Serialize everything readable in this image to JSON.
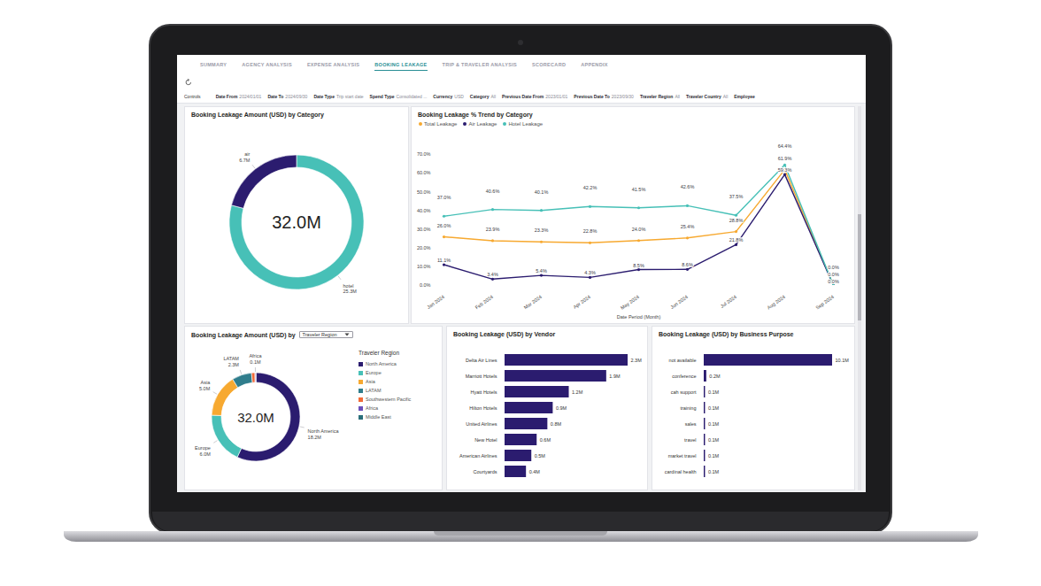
{
  "header": {
    "tabs": [
      "SUMMARY",
      "AGENCY ANALYSIS",
      "EXPENSE ANALYSIS",
      "BOOKING LEAKAGE",
      "TRIP & TRAVELER ANALYSIS",
      "SCORECARD",
      "APPENDIX"
    ],
    "active_tab": "BOOKING LEAKAGE",
    "controls_title": "Controls",
    "controls": [
      {
        "label": "Date From",
        "value": "2024/01/01"
      },
      {
        "label": "Date To",
        "value": "2024/09/30"
      },
      {
        "label": "Date Type",
        "value": "Trip start date"
      },
      {
        "label": "Spend Type",
        "value": "Consolidated ..."
      },
      {
        "label": "Currency",
        "value": "USD"
      },
      {
        "label": "Category",
        "value": "All"
      },
      {
        "label": "Previous Date From",
        "value": "2023/01/01"
      },
      {
        "label": "Previous Date To",
        "value": "2023/09/30"
      },
      {
        "label": "Traveler Region",
        "value": "All"
      },
      {
        "label": "Traveler Country",
        "value": "All"
      },
      {
        "label": "Employee",
        "value": null
      }
    ]
  },
  "chart_data": [
    {
      "type": "donut",
      "title": "Booking Leakage Amount (USD) by Category",
      "categories": [
        "hotel",
        "air"
      ],
      "values": [
        25.3,
        6.7
      ],
      "value_labels": [
        "25.3M",
        "6.7M"
      ],
      "colors": [
        "#47c0b7",
        "#2b1c6f"
      ],
      "center_label": "32.0M",
      "data_labels": true
    },
    {
      "type": "line",
      "title": "Booking Leakage % Trend by Category",
      "categories": [
        "Jan 2024",
        "Feb 2024",
        "Mar 2024",
        "Apr 2024",
        "May 2024",
        "Jun 2024",
        "Jul 2024",
        "Aug 2024",
        "Sep 2024"
      ],
      "xlabel": "Date Period (Month)",
      "ylim": [
        0,
        70
      ],
      "yticks": [
        {
          "value": 0,
          "label": "0.0%"
        },
        {
          "value": 10,
          "label": "10.0%"
        },
        {
          "value": 20,
          "label": "20.0%"
        },
        {
          "value": 30,
          "label": "30.0%"
        },
        {
          "value": 40,
          "label": "40.0%"
        },
        {
          "value": 50,
          "label": "50.0%"
        },
        {
          "value": 60,
          "label": "60.0%"
        },
        {
          "value": 70,
          "label": "70.0%"
        }
      ],
      "grid": false,
      "legend": "top-left",
      "data_labels": true,
      "marker": "circle",
      "series": [
        {
          "name": "Total Leakage",
          "color": "#f7a930",
          "values": [
            26.0,
            23.9,
            23.3,
            22.8,
            24.0,
            25.4,
            28.8,
            61.9,
            0.0
          ],
          "value_labels": [
            "26.0%",
            "23.9%",
            "23.3%",
            "22.8%",
            "24.0%",
            "25.4%",
            "28.8%",
            "61.9%",
            "0.0%"
          ]
        },
        {
          "name": "Air Leakage",
          "color": "#2b1c6f",
          "values": [
            11.1,
            3.4,
            5.4,
            4.3,
            8.5,
            8.6,
            21.8,
            59.3,
            0.0
          ],
          "value_labels": [
            "11.1%",
            "3.4%",
            "5.4%",
            "4.3%",
            "8.5%",
            "8.6%",
            "21.8%",
            "59.3%",
            "0.0%"
          ]
        },
        {
          "name": "Hotel Leakage",
          "color": "#47c0b7",
          "values": [
            37.0,
            40.6,
            40.1,
            42.2,
            41.5,
            42.6,
            37.5,
            64.4,
            0.0
          ],
          "value_labels": [
            "37.0%",
            "40.6%",
            "40.1%",
            "42.2%",
            "41.5%",
            "42.6%",
            "37.5%",
            "64.4%",
            "0.0%"
          ]
        }
      ]
    },
    {
      "type": "donut",
      "title": "Booking Leakage Amount (USD) by",
      "selector": "Traveler Region",
      "legend_title": "Traveler Region",
      "legend": "right",
      "categories": [
        "North America",
        "Europe",
        "Asia",
        "LATAM",
        "Southwestern Pacific",
        "Africa",
        "Middle East"
      ],
      "values": [
        18.2,
        6.0,
        5.0,
        2.3,
        0.4,
        0.1,
        0.0
      ],
      "value_labels": [
        "18.2M",
        "6.0M",
        "5.0M",
        "2.3M",
        null,
        "0.1M",
        null
      ],
      "colors": [
        "#2b1c6f",
        "#47c0b7",
        "#f7a930",
        "#2f7d8c",
        "#f26b38",
        "#6b4fbb",
        "#2a6f7a"
      ],
      "center_label": "32.0M",
      "data_labels": true
    },
    {
      "type": "bar",
      "orientation": "horizontal",
      "title": "Booking Leakage (USD) by Vendor",
      "categories": [
        "Delta Air Lines",
        "Marriott Hotels",
        "Hyatt Hotels",
        "Hilton Hotels",
        "United Airlines",
        "New Hotel",
        "American Airlines",
        "Courtyards"
      ],
      "values": [
        2.3,
        1.9,
        1.2,
        0.9,
        0.8,
        0.6,
        0.5,
        0.4
      ],
      "value_labels": [
        "2.3M",
        "1.9M",
        "1.2M",
        "0.9M",
        "0.8M",
        "0.6M",
        "0.5M",
        "0.4M"
      ],
      "color": "#2b1c6f",
      "data_labels": true,
      "tick_labels": "y"
    },
    {
      "type": "bar",
      "orientation": "horizontal",
      "title": "Booking Leakage (USD) by Business Purpose",
      "categories": [
        "not available",
        "conference",
        "cah support",
        "training",
        "sales",
        "travel",
        "market travel",
        "cardinal health"
      ],
      "values": [
        10.1,
        0.2,
        0.1,
        0.1,
        0.1,
        0.1,
        0.1,
        0.1
      ],
      "value_labels": [
        "10.1M",
        "0.2M",
        "0.1M",
        "0.1M",
        "0.1M",
        "0.1M",
        "0.1M",
        "0.1M"
      ],
      "color": "#2b1c6f",
      "data_labels": true,
      "tick_labels": "y"
    }
  ]
}
